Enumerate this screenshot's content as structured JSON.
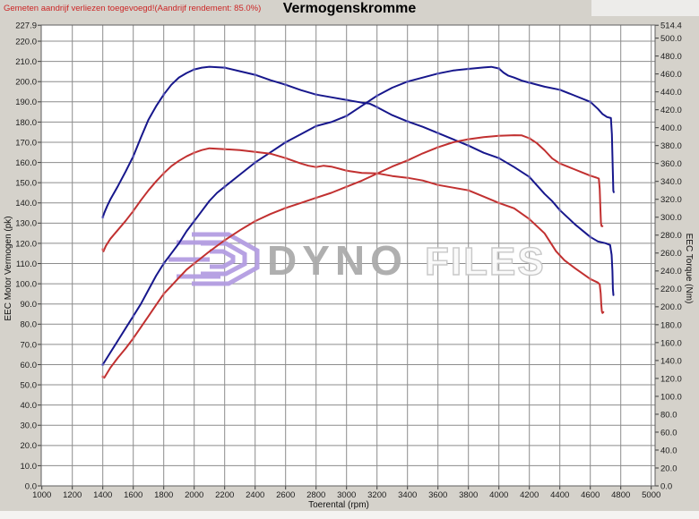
{
  "header": {
    "warning": "Gemeten aandrijf verliezen toegevoegd!(Aandrijf rendement: 85.0%)",
    "title": "Vermogenskromme"
  },
  "watermark": {
    "brand_bold": "DYNO",
    "brand_light": "FILES",
    "logo_color": "#b49ee2"
  },
  "colors": {
    "curve_blue": "#17178c",
    "curve_red": "#c13030",
    "marker_blue": "#7b7bd0",
    "marker_red": "#e08a8a",
    "grid": "#8c8c8c",
    "warning_red": "#cc2626"
  },
  "axes": {
    "left": {
      "title": "EEC Motor Vermogen (pk)",
      "labels": [
        "227.9",
        "220.0",
        "210.0",
        "200.0",
        "190.0",
        "180.0",
        "170.0",
        "160.0",
        "150.0",
        "140.0",
        "130.0",
        "120.0",
        "110.0",
        "100.0",
        "90.0",
        "80.0",
        "70.0",
        "60.0",
        "50.0",
        "40.0",
        "30.0",
        "20.0",
        "10.0",
        "0.0"
      ],
      "values": [
        227.9,
        220,
        210,
        200,
        190,
        180,
        170,
        160,
        150,
        140,
        130,
        120,
        110,
        100,
        90,
        80,
        70,
        60,
        50,
        40,
        30,
        20,
        10,
        0
      ]
    },
    "right": {
      "title": "EEC Torque (Nm)",
      "labels": [
        "514.4",
        "500.0",
        "480.0",
        "460.0",
        "440.0",
        "420.0",
        "400.0",
        "380.0",
        "360.0",
        "340.0",
        "320.0",
        "300.0",
        "280.0",
        "260.0",
        "240.0",
        "220.0",
        "200.0",
        "180.0",
        "160.0",
        "140.0",
        "120.0",
        "100.0",
        "80.0",
        "60.0",
        "40.0",
        "20.0",
        "0.0"
      ],
      "values": [
        514.4,
        500,
        480,
        460,
        440,
        420,
        400,
        380,
        360,
        340,
        320,
        300,
        280,
        260,
        240,
        220,
        200,
        180,
        160,
        140,
        120,
        100,
        80,
        60,
        40,
        20,
        0
      ]
    },
    "x": {
      "title": "Toerental (rpm)",
      "labels": [
        "1000",
        "1200",
        "1400",
        "1600",
        "1800",
        "2000",
        "2200",
        "2400",
        "2600",
        "2800",
        "3000",
        "3200",
        "3400",
        "3600",
        "3800",
        "4000",
        "4200",
        "4400",
        "4600",
        "4800",
        "5000"
      ],
      "values": [
        1000,
        1200,
        1400,
        1600,
        1800,
        2000,
        2200,
        2400,
        2600,
        2800,
        3000,
        3200,
        3400,
        3600,
        3800,
        4000,
        4200,
        4400,
        4600,
        4800,
        5000
      ]
    }
  },
  "chart_data": {
    "type": "line",
    "title": "Vermogenskromme",
    "xlabel": "Toerental (rpm)",
    "ylabel_left": "EEC Motor Vermogen (pk)",
    "ylabel_right": "EEC Torque (Nm)",
    "x_range": [
      1000,
      5000
    ],
    "ylim_left": [
      0,
      227.9
    ],
    "ylim_right": [
      0,
      514.4
    ],
    "grid": true,
    "legend": "none",
    "series": [
      {
        "name": "torque-blue",
        "axis": "right",
        "unit": "Nm",
        "color": "#17178c",
        "points": [
          [
            1400,
            300
          ],
          [
            1410,
            305
          ],
          [
            1430,
            313
          ],
          [
            1450,
            320
          ],
          [
            1500,
            335
          ],
          [
            1550,
            351
          ],
          [
            1600,
            368
          ],
          [
            1650,
            389
          ],
          [
            1700,
            409
          ],
          [
            1750,
            424
          ],
          [
            1800,
            437
          ],
          [
            1850,
            448
          ],
          [
            1900,
            456
          ],
          [
            1950,
            461
          ],
          [
            2000,
            465
          ],
          [
            2050,
            467
          ],
          [
            2100,
            468
          ],
          [
            2200,
            467
          ],
          [
            2300,
            463
          ],
          [
            2400,
            459
          ],
          [
            2500,
            453
          ],
          [
            2600,
            448
          ],
          [
            2700,
            442
          ],
          [
            2800,
            437
          ],
          [
            2900,
            434
          ],
          [
            3000,
            431
          ],
          [
            3100,
            428
          ],
          [
            3150,
            427
          ],
          [
            3200,
            423
          ],
          [
            3300,
            414
          ],
          [
            3400,
            407
          ],
          [
            3500,
            401
          ],
          [
            3600,
            394
          ],
          [
            3700,
            387
          ],
          [
            3800,
            380
          ],
          [
            3900,
            372
          ],
          [
            4000,
            366
          ],
          [
            4100,
            356
          ],
          [
            4200,
            345
          ],
          [
            4300,
            326
          ],
          [
            4350,
            318
          ],
          [
            4400,
            308
          ],
          [
            4450,
            300
          ],
          [
            4500,
            292
          ],
          [
            4550,
            285
          ],
          [
            4600,
            278
          ],
          [
            4650,
            273
          ],
          [
            4700,
            271
          ],
          [
            4730,
            269
          ],
          [
            4740,
            258
          ],
          [
            4745,
            240
          ],
          [
            4748,
            220
          ],
          [
            4752,
            213
          ]
        ]
      },
      {
        "name": "power-blue",
        "axis": "left",
        "unit": "pk",
        "color": "#17178c",
        "points": [
          [
            1400,
            60
          ],
          [
            1450,
            66
          ],
          [
            1500,
            72
          ],
          [
            1550,
            78
          ],
          [
            1600,
            84
          ],
          [
            1650,
            90
          ],
          [
            1700,
            97
          ],
          [
            1750,
            104
          ],
          [
            1800,
            110
          ],
          [
            1850,
            115
          ],
          [
            1900,
            120
          ],
          [
            1950,
            126
          ],
          [
            2000,
            131
          ],
          [
            2050,
            136
          ],
          [
            2100,
            141
          ],
          [
            2150,
            145
          ],
          [
            2200,
            148
          ],
          [
            2300,
            154
          ],
          [
            2400,
            160
          ],
          [
            2500,
            165
          ],
          [
            2600,
            170
          ],
          [
            2700,
            174
          ],
          [
            2800,
            178
          ],
          [
            2900,
            180
          ],
          [
            3000,
            183
          ],
          [
            3100,
            188
          ],
          [
            3200,
            193
          ],
          [
            3300,
            197
          ],
          [
            3400,
            200
          ],
          [
            3500,
            202
          ],
          [
            3600,
            204
          ],
          [
            3700,
            205.5
          ],
          [
            3800,
            206.3
          ],
          [
            3900,
            207
          ],
          [
            3950,
            207.3
          ],
          [
            4000,
            206.5
          ],
          [
            4030,
            204.5
          ],
          [
            4060,
            203
          ],
          [
            4100,
            202
          ],
          [
            4150,
            200.5
          ],
          [
            4200,
            199.5
          ],
          [
            4300,
            197.5
          ],
          [
            4400,
            196
          ],
          [
            4500,
            193
          ],
          [
            4600,
            190
          ],
          [
            4650,
            186.5
          ],
          [
            4680,
            184
          ],
          [
            4710,
            182.5
          ],
          [
            4735,
            182
          ],
          [
            4742,
            174
          ],
          [
            4747,
            158
          ],
          [
            4751,
            146
          ],
          [
            4754,
            145.3
          ]
        ]
      },
      {
        "name": "torque-red",
        "axis": "right",
        "unit": "Nm",
        "color": "#c13030",
        "points": [
          [
            1400,
            264
          ],
          [
            1405,
            262
          ],
          [
            1420,
            268
          ],
          [
            1450,
            276
          ],
          [
            1500,
            286
          ],
          [
            1550,
            296
          ],
          [
            1600,
            307
          ],
          [
            1650,
            319
          ],
          [
            1700,
            330
          ],
          [
            1750,
            340
          ],
          [
            1800,
            349
          ],
          [
            1850,
            357
          ],
          [
            1900,
            363
          ],
          [
            1950,
            368
          ],
          [
            2000,
            372
          ],
          [
            2050,
            375
          ],
          [
            2100,
            377
          ],
          [
            2200,
            376
          ],
          [
            2300,
            375
          ],
          [
            2400,
            373
          ],
          [
            2500,
            371
          ],
          [
            2600,
            366
          ],
          [
            2700,
            360
          ],
          [
            2750,
            357.5
          ],
          [
            2800,
            356
          ],
          [
            2850,
            357.5
          ],
          [
            2900,
            356.5
          ],
          [
            3000,
            352
          ],
          [
            3100,
            349.5
          ],
          [
            3200,
            349
          ],
          [
            3300,
            346
          ],
          [
            3400,
            344
          ],
          [
            3500,
            341
          ],
          [
            3600,
            336
          ],
          [
            3700,
            333
          ],
          [
            3800,
            330
          ],
          [
            3900,
            323
          ],
          [
            4000,
            316
          ],
          [
            4100,
            310
          ],
          [
            4200,
            298
          ],
          [
            4300,
            282
          ],
          [
            4375,
            262
          ],
          [
            4430,
            252
          ],
          [
            4500,
            243
          ],
          [
            4550,
            237
          ],
          [
            4600,
            231
          ],
          [
            4650,
            227
          ],
          [
            4662,
            225
          ],
          [
            4668,
            215
          ],
          [
            4672,
            203
          ],
          [
            4676,
            195
          ],
          [
            4680,
            193
          ],
          [
            4686,
            194
          ]
        ]
      },
      {
        "name": "power-red",
        "axis": "left",
        "unit": "pk",
        "color": "#c13030",
        "points": [
          [
            1400,
            54
          ],
          [
            1410,
            53.5
          ],
          [
            1450,
            58.5
          ],
          [
            1500,
            63.5
          ],
          [
            1550,
            68
          ],
          [
            1600,
            73
          ],
          [
            1650,
            78.5
          ],
          [
            1700,
            84
          ],
          [
            1750,
            89.5
          ],
          [
            1800,
            95
          ],
          [
            1850,
            99
          ],
          [
            1900,
            103
          ],
          [
            1950,
            107
          ],
          [
            2000,
            110
          ],
          [
            2100,
            116
          ],
          [
            2200,
            121.5
          ],
          [
            2300,
            126.5
          ],
          [
            2400,
            131
          ],
          [
            2500,
            134.5
          ],
          [
            2600,
            137.5
          ],
          [
            2700,
            140
          ],
          [
            2800,
            142.5
          ],
          [
            2900,
            145
          ],
          [
            3000,
            148
          ],
          [
            3100,
            151
          ],
          [
            3200,
            154.5
          ],
          [
            3300,
            158
          ],
          [
            3400,
            161
          ],
          [
            3500,
            164.5
          ],
          [
            3600,
            167.5
          ],
          [
            3700,
            170
          ],
          [
            3800,
            171.5
          ],
          [
            3900,
            172.5
          ],
          [
            4000,
            173.2
          ],
          [
            4100,
            173.5
          ],
          [
            4150,
            173.4
          ],
          [
            4200,
            172
          ],
          [
            4250,
            169.5
          ],
          [
            4300,
            166
          ],
          [
            4350,
            162
          ],
          [
            4400,
            159.5
          ],
          [
            4450,
            158
          ],
          [
            4500,
            156.5
          ],
          [
            4550,
            155
          ],
          [
            4600,
            153.5
          ],
          [
            4640,
            152.5
          ],
          [
            4656,
            152
          ],
          [
            4662,
            147
          ],
          [
            4666,
            138
          ],
          [
            4670,
            130
          ],
          [
            4674,
            128.5
          ],
          [
            4680,
            128.5
          ]
        ]
      }
    ]
  }
}
